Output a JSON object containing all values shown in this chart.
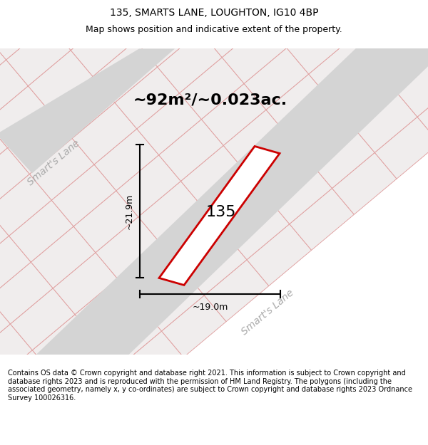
{
  "title_line1": "135, SMARTS LANE, LOUGHTON, IG10 4BP",
  "title_line2": "Map shows position and indicative extent of the property.",
  "area_text": "~92m²/~0.023ac.",
  "dim_width": "~19.0m",
  "dim_height": "~21.9m",
  "plot_number": "135",
  "road_label_left": "Smart's Lane",
  "road_label_bottom": "Smart's Lane",
  "plot_outline_color": "#cc0000",
  "dim_color": "#111111",
  "road_grey": "#d4d4d4",
  "bg_light": "#e8e8e8",
  "parcel_ec": "#e0a0a0",
  "parcel_fc": "#f0eded",
  "footnote": "Contains OS data © Crown copyright and database right 2021. This information is subject to Crown copyright and database rights 2023 and is reproduced with the permission of HM Land Registry. The polygons (including the associated geometry, namely x, y co-ordinates) are subject to Crown copyright and database rights 2023 Ordnance Survey 100026316.",
  "title_fontsize": 10,
  "subtitle_fontsize": 9,
  "area_fontsize": 16,
  "plot_num_fontsize": 16,
  "dim_fontsize": 9,
  "road_label_fontsize": 10,
  "footnote_fontsize": 7
}
